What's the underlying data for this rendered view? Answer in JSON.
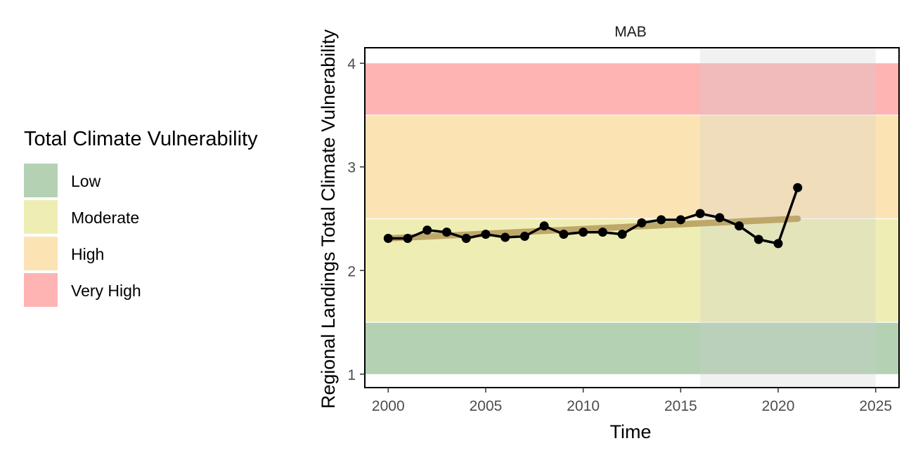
{
  "legend": {
    "title": "Total Climate Vulnerability",
    "items": [
      {
        "label": "Low",
        "color": "#b4d1b4"
      },
      {
        "label": "Moderate",
        "color": "#eeeeb4"
      },
      {
        "label": "High",
        "color": "#fce3b4"
      },
      {
        "label": "Very High",
        "color": "#ffb4b4"
      }
    ]
  },
  "chart_data": {
    "type": "line",
    "title": "MAB",
    "xlabel": "Time",
    "ylabel": "Regional Landings Total Climate Vulnerability",
    "xlim": [
      1998.8,
      2026.2
    ],
    "ylim": [
      0.87,
      4.15
    ],
    "x_ticks": [
      2000,
      2005,
      2010,
      2015,
      2020,
      2025
    ],
    "y_ticks": [
      1,
      2,
      3,
      4
    ],
    "grid": false,
    "legend_position": "left",
    "bands": [
      {
        "label": "Low",
        "y0": 1.0,
        "y1": 1.5,
        "color": "#b4d1b4"
      },
      {
        "label": "Moderate",
        "y0": 1.5,
        "y1": 2.5,
        "color": "#eeeeb4"
      },
      {
        "label": "High",
        "y0": 2.5,
        "y1": 3.5,
        "color": "#fce3b4"
      },
      {
        "label": "Very High",
        "y0": 3.5,
        "y1": 4.0,
        "color": "#ffb4b4"
      }
    ],
    "shaded_period": {
      "x0": 2016,
      "x1": 2025,
      "color": "#cccccc"
    },
    "trend": {
      "x": [
        2000,
        2021
      ],
      "y": [
        2.31,
        2.5
      ],
      "color": "#b8a060"
    },
    "series": [
      {
        "color": "#000000",
        "x": [
          2000,
          2001,
          2002,
          2003,
          2004,
          2005,
          2006,
          2007,
          2008,
          2009,
          2010,
          2011,
          2012,
          2013,
          2014,
          2015,
          2016,
          2017,
          2018,
          2019,
          2020,
          2021
        ],
        "y": [
          2.31,
          2.31,
          2.39,
          2.37,
          2.31,
          2.35,
          2.32,
          2.33,
          2.43,
          2.35,
          2.37,
          2.37,
          2.35,
          2.46,
          2.49,
          2.49,
          2.55,
          2.51,
          2.43,
          2.3,
          2.26,
          2.8
        ]
      }
    ]
  }
}
